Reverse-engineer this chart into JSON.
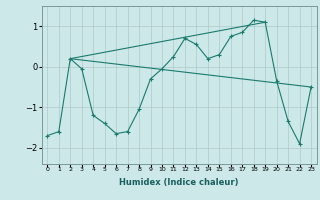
{
  "xlabel": "Humidex (Indice chaleur)",
  "ylabel": "",
  "background_color": "#cce8e8",
  "grid_color": "#b0c8c8",
  "line_color": "#1a7a6e",
  "xlim": [
    -0.5,
    23.5
  ],
  "ylim": [
    -2.4,
    1.5
  ],
  "x_ticks": [
    0,
    1,
    2,
    3,
    4,
    5,
    6,
    7,
    8,
    9,
    10,
    11,
    12,
    13,
    14,
    15,
    16,
    17,
    18,
    19,
    20,
    21,
    22,
    23
  ],
  "y_ticks": [
    -2,
    -1,
    0,
    1
  ],
  "series": [
    [
      0,
      -1.7
    ],
    [
      1,
      -1.6
    ],
    [
      2,
      0.2
    ],
    [
      3,
      -0.05
    ],
    [
      4,
      -1.2
    ],
    [
      5,
      -1.4
    ],
    [
      6,
      -1.65
    ],
    [
      7,
      -1.6
    ],
    [
      8,
      -1.05
    ],
    [
      9,
      -0.3
    ],
    [
      10,
      -0.05
    ],
    [
      11,
      0.25
    ],
    [
      12,
      0.7
    ],
    [
      13,
      0.55
    ],
    [
      14,
      0.2
    ],
    [
      15,
      0.3
    ],
    [
      16,
      0.75
    ],
    [
      17,
      0.85
    ],
    [
      18,
      1.15
    ],
    [
      19,
      1.1
    ],
    [
      20,
      -0.35
    ],
    [
      21,
      -1.35
    ],
    [
      22,
      -1.9
    ],
    [
      23,
      -0.5
    ]
  ],
  "line1": [
    [
      2,
      0.2
    ],
    [
      19,
      1.1
    ]
  ],
  "line2": [
    [
      2,
      0.2
    ],
    [
      23,
      -0.5
    ]
  ]
}
